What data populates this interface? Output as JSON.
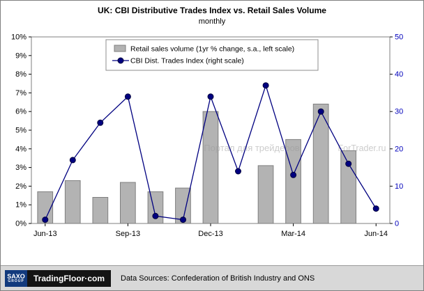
{
  "chart_data": {
    "type": "bar+line",
    "title": "UK: CBI Distributive Trades Index vs. Retail Sales Volume",
    "subtitle": "monthly",
    "categories": [
      "Jun-13",
      "Jul-13",
      "Aug-13",
      "Sep-13",
      "Oct-13",
      "Nov-13",
      "Dec-13",
      "Jan-14",
      "Feb-14",
      "Mar-14",
      "Apr-14",
      "May-14",
      "Jun-14"
    ],
    "x_ticks": [
      "Jun-13",
      "Sep-13",
      "Dec-13",
      "Mar-14",
      "Jun-14"
    ],
    "series": [
      {
        "name": "Retail sales volume (1yr % change, s.a., left scale)",
        "type": "bar",
        "axis": "left",
        "values": [
          1.7,
          2.3,
          1.4,
          2.2,
          1.7,
          1.9,
          6.0,
          null,
          3.1,
          4.5,
          6.4,
          3.9,
          null
        ]
      },
      {
        "name": "CBI Dist. Trades Index (right scale)",
        "type": "line",
        "axis": "right",
        "values": [
          1,
          17,
          27,
          34,
          2,
          1,
          34,
          14,
          37,
          13,
          30,
          16,
          4
        ]
      }
    ],
    "left_axis": {
      "min": 0,
      "max": 10,
      "step": 1,
      "suffix": "%"
    },
    "right_axis": {
      "min": 0,
      "max": 50,
      "step": 10
    },
    "legend_position": "top-center",
    "grid": "off"
  },
  "watermark": {
    "text1": "Портал для трейдеров",
    "text2": "ForTrader.ru"
  },
  "footer": {
    "logo_saxo": "SAXO",
    "logo_saxo_sub": "GROUP",
    "logo_tradingfloor": "TradingFloor·com",
    "source_text": "Data Sources: Confederation of British Industry and ONS"
  },
  "colors": {
    "bar_fill": "#b3b3b3",
    "bar_stroke": "#7f7f7f",
    "line": "#000080",
    "marker_stroke": "#00003c",
    "right_axis_label": "#0000bb",
    "axis_label": "#000000",
    "plot_border": "#7f7f7f",
    "watermark": "#9a9a9a"
  }
}
